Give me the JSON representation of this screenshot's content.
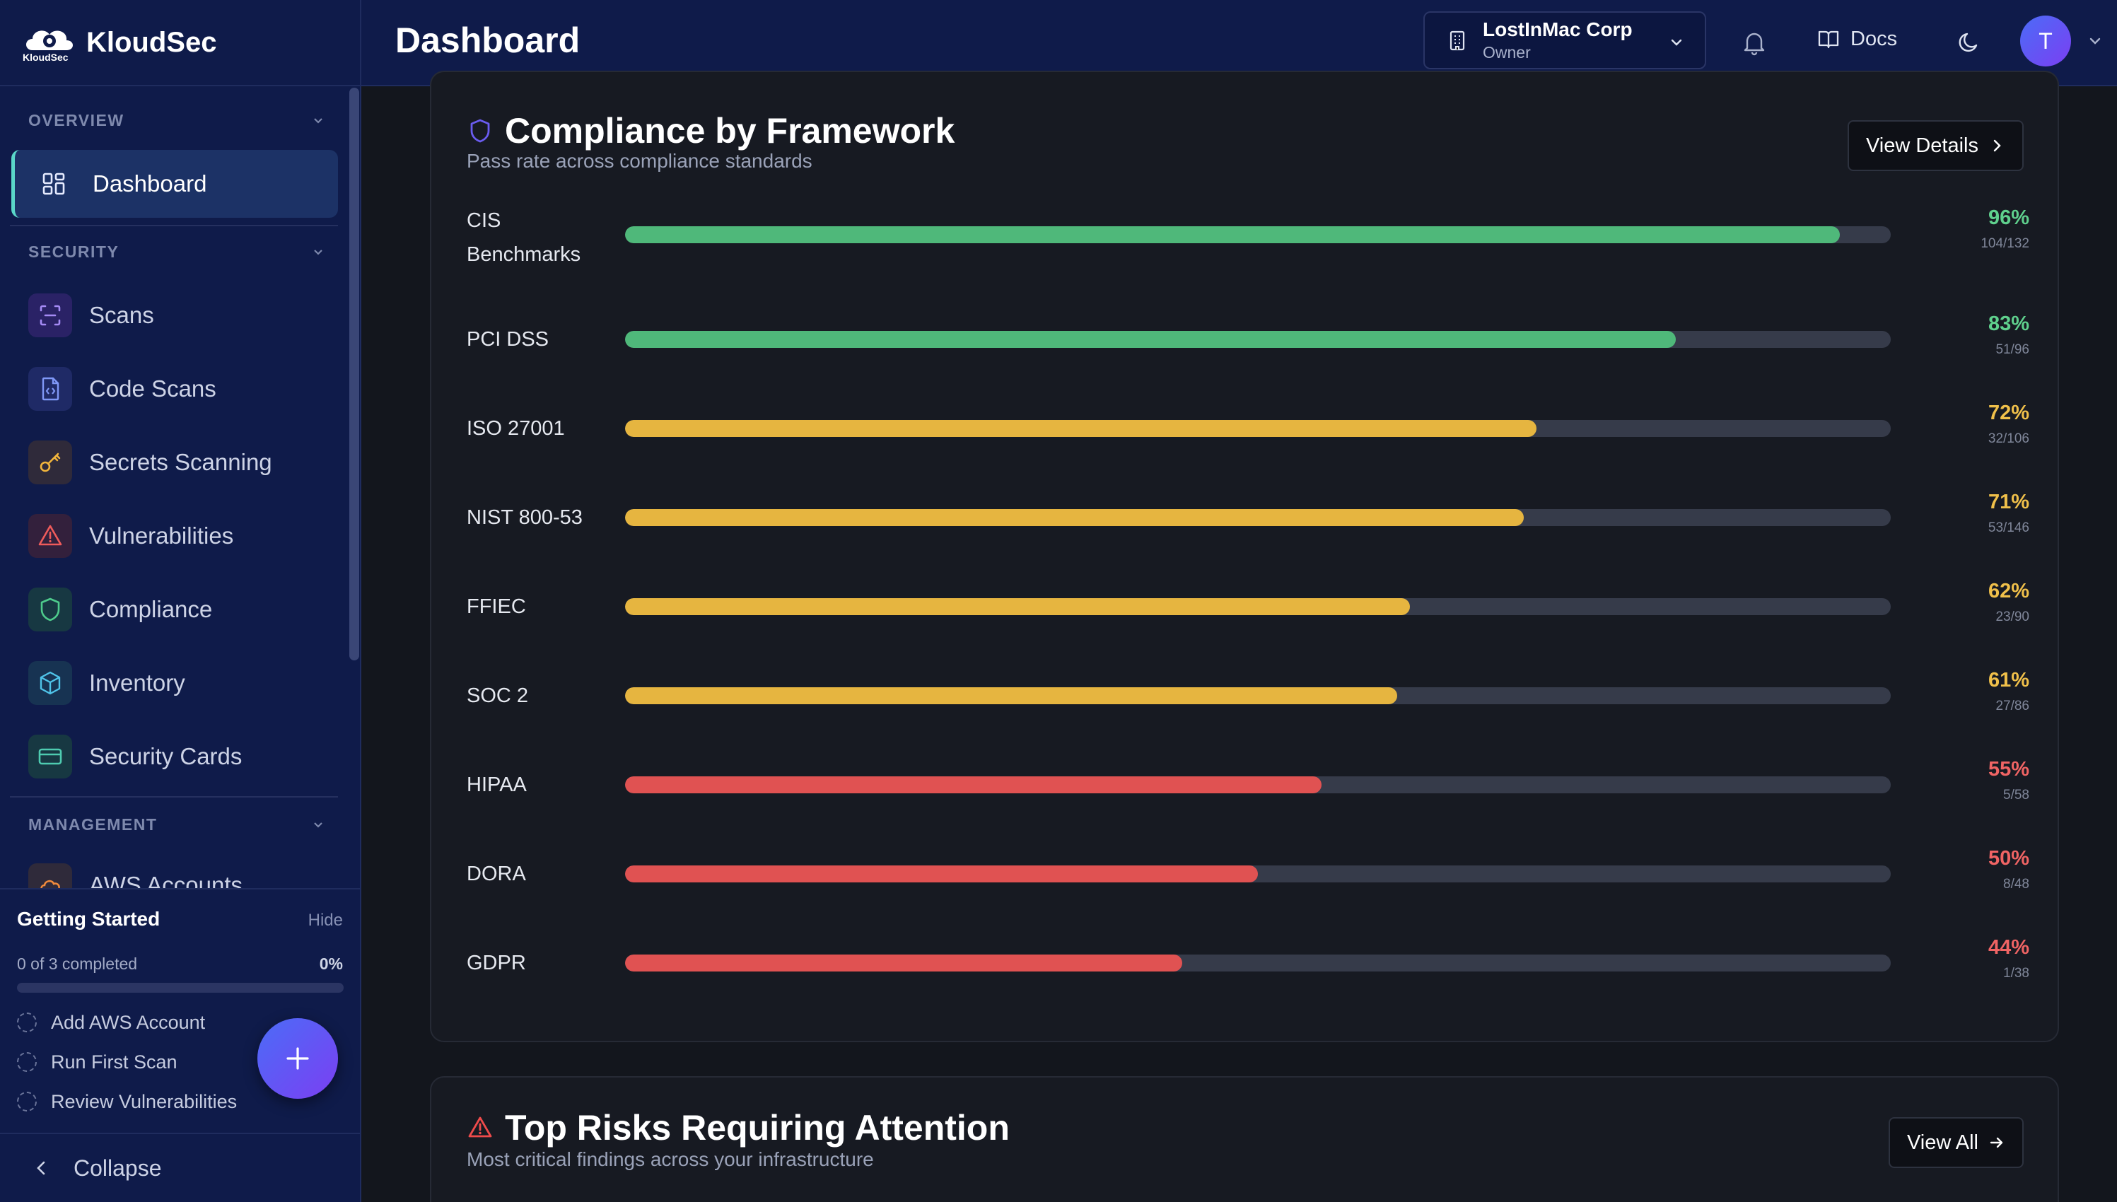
{
  "brand": {
    "name": "KloudSec",
    "logo_text": "KloudSec"
  },
  "header": {
    "title": "Dashboard",
    "org": {
      "name": "LostInMac Corp",
      "role": "Owner"
    },
    "docs_label": "Docs",
    "avatar_initial": "T"
  },
  "sidebar": {
    "sections": [
      {
        "label": "OVERVIEW"
      },
      {
        "label": "SECURITY"
      },
      {
        "label": "MANAGEMENT"
      }
    ],
    "items": [
      {
        "label": "Dashboard",
        "icon": "grid-icon",
        "active": true
      },
      {
        "label": "Scans",
        "icon": "scan-icon",
        "color": "#a58bf5",
        "bg": "#2a2266"
      },
      {
        "label": "Code Scans",
        "icon": "code-file-icon",
        "color": "#7f97f6",
        "bg": "#1f2a66"
      },
      {
        "label": "Secrets Scanning",
        "icon": "key-icon",
        "color": "#f2b53c",
        "bg": "#2f2a3a"
      },
      {
        "label": "Vulnerabilities",
        "icon": "warning-icon",
        "color": "#ef5b5b",
        "bg": "#33203c"
      },
      {
        "label": "Compliance",
        "icon": "shield-icon",
        "color": "#4ecb8c",
        "bg": "#173842"
      },
      {
        "label": "Inventory",
        "icon": "cube-icon",
        "color": "#4fc3e8",
        "bg": "#173352"
      },
      {
        "label": "Security Cards",
        "icon": "card-icon",
        "color": "#4ecbb0",
        "bg": "#173842"
      },
      {
        "label": "AWS Accounts",
        "icon": "cloud-icon",
        "color": "#f08a3c",
        "bg": "#2f2a3a"
      }
    ],
    "getting_started": {
      "title": "Getting Started",
      "hide_label": "Hide",
      "count_text": "0 of 3 completed",
      "percent_text": "0%",
      "progress": 0,
      "tasks": [
        "Add AWS Account",
        "Run First Scan",
        "Review Vulnerabilities"
      ]
    },
    "collapse_label": "Collapse"
  },
  "compliance": {
    "title": "Compliance by Framework",
    "subtitle": "Pass rate across compliance standards",
    "button_label": "View Details",
    "frameworks": [
      {
        "name": "CIS Benchmarks",
        "name_lines": [
          "CIS",
          "Benchmarks"
        ],
        "pct": 96,
        "pct_text": "96%",
        "ratio": "104/132",
        "color": "#4fb87a"
      },
      {
        "name": "PCI DSS",
        "pct": 83,
        "pct_text": "83%",
        "ratio": "51/96",
        "color": "#4fb87a"
      },
      {
        "name": "ISO 27001",
        "pct": 72,
        "pct_text": "72%",
        "ratio": "32/106",
        "color": "#e6b540"
      },
      {
        "name": "NIST 800-53",
        "pct": 71,
        "pct_text": "71%",
        "ratio": "53/146",
        "color": "#e6b540"
      },
      {
        "name": "FFIEC",
        "pct": 62,
        "pct_text": "62%",
        "ratio": "23/90",
        "color": "#e6b540"
      },
      {
        "name": "SOC 2",
        "pct": 61,
        "pct_text": "61%",
        "ratio": "27/86",
        "color": "#e6b540"
      },
      {
        "name": "HIPAA",
        "pct": 55,
        "pct_text": "55%",
        "ratio": "5/58",
        "color": "#e05252"
      },
      {
        "name": "DORA",
        "pct": 50,
        "pct_text": "50%",
        "ratio": "8/48",
        "color": "#e05252"
      },
      {
        "name": "GDPR",
        "pct": 44,
        "pct_text": "44%",
        "ratio": "1/38",
        "color": "#e05252"
      }
    ]
  },
  "top_risks": {
    "title": "Top Risks Requiring Attention",
    "subtitle": "Most critical findings across your infrastructure",
    "button_label": "View All"
  },
  "colors": {
    "sidebar_bg": "#0f1b4a",
    "accent": "#5ad7c9",
    "good": "#4fb87a",
    "warn": "#e6b540",
    "bad": "#e05252"
  }
}
